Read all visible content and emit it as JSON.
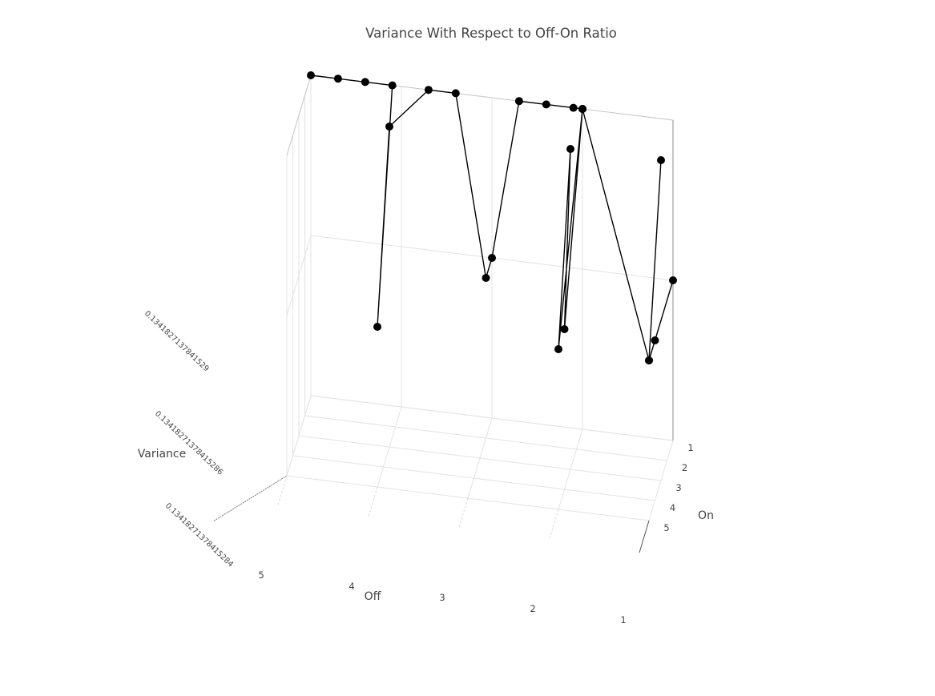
{
  "chart_data": {
    "type": "scatter3d-lines",
    "title": "Variance With Respect to Off-On Ratio",
    "xlabel": "Off",
    "ylabel": "On",
    "zlabel": "Variance",
    "x_ticks": [
      "1",
      "2",
      "3",
      "4",
      "5"
    ],
    "y_ticks": [
      "1",
      "2",
      "3",
      "4",
      "5"
    ],
    "z_ticks": [
      "0.1341827137841529",
      "0.13418271378415286",
      "0.13418271378415284"
    ],
    "marker_color": "#000000",
    "line_color": "#000000",
    "grid": true,
    "series": [
      {
        "points": [
          {
            "off": 5,
            "on": 1,
            "variance": 0.1341827137841529
          },
          {
            "off": 4.7,
            "on": 1,
            "variance": 0.1341827137841529
          },
          {
            "off": 4.4,
            "on": 1,
            "variance": 0.1341827137841529
          },
          {
            "off": 4.1,
            "on": 1,
            "variance": 0.1341827137841529
          },
          {
            "off": 4,
            "on": 5,
            "variance": 0.13418271378415286
          },
          {
            "off": 4,
            "on": 3,
            "variance": 0.1341827137841529
          },
          {
            "off": 3.7,
            "on": 1,
            "variance": 0.1341827137841529
          },
          {
            "off": 3.4,
            "on": 1,
            "variance": 0.1341827137841529
          },
          {
            "off": 3,
            "on": 2,
            "variance": 0.13418271378415286
          },
          {
            "off": 3,
            "on": 1,
            "variance": 0.13418271378415286
          },
          {
            "off": 2.7,
            "on": 1,
            "variance": 0.1341827137841529
          },
          {
            "off": 2.4,
            "on": 1,
            "variance": 0.1341827137841529
          },
          {
            "off": 2.1,
            "on": 1,
            "variance": 0.1341827137841529
          },
          {
            "off": 2,
            "on": 1,
            "variance": 0.1341827137841529
          },
          {
            "off": 2,
            "on": 5,
            "variance": 0.13418271378415286
          },
          {
            "off": 2,
            "on": 3,
            "variance": 0.1341827137841529
          },
          {
            "off": 2,
            "on": 4,
            "variance": 0.13418271378415286
          },
          {
            "off": 2,
            "on": 1,
            "variance": 0.1341827137841529
          },
          {
            "off": 2,
            "on": 1,
            "variance": 0.1341827137841529
          },
          {
            "off": 1,
            "on": 5,
            "variance": 0.13418271378415286
          },
          {
            "off": 1,
            "on": 3,
            "variance": 0.1341827137841529
          },
          {
            "off": 1,
            "on": 5,
            "variance": 0.13418271378415286
          },
          {
            "off": 1,
            "on": 4,
            "variance": 0.13418271378415286
          },
          {
            "off": 1,
            "on": 1,
            "variance": 0.13418271378415286
          }
        ]
      }
    ]
  }
}
